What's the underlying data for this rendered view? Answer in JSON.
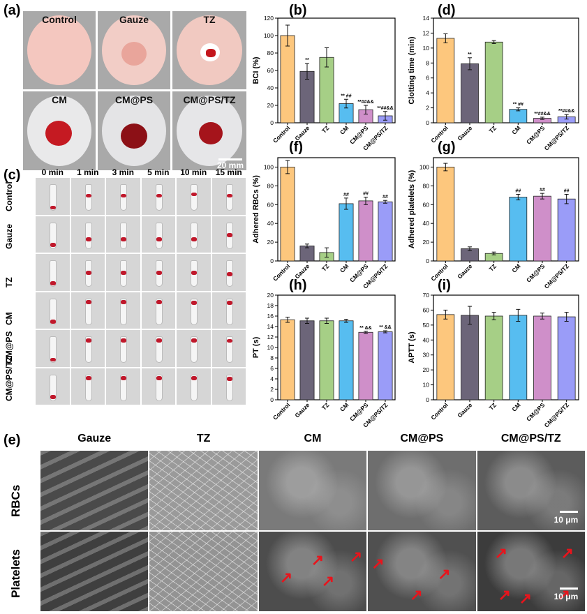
{
  "panel_labels": {
    "a": "(a)",
    "b": "(b)",
    "c": "(c)",
    "d": "(d)",
    "e": "(e)",
    "f": "(f)",
    "g": "(g)",
    "h": "(h)",
    "i": "(i)"
  },
  "colors": {
    "Control": "#fdc77d",
    "Gauze": "#6c6579",
    "TZ": "#a6cf86",
    "CM": "#57bdf0",
    "CM@PS": "#cf8fc9",
    "CM@PS/TZ": "#9a9cf8"
  },
  "panel_a": {
    "dishes": [
      {
        "label": "Control",
        "fill": "#f4c7bf"
      },
      {
        "label": "Gauze",
        "fill": "#f2cdc6"
      },
      {
        "label": "TZ",
        "fill": "#f1c9c1"
      },
      {
        "label": "CM",
        "fill": "#e9e9ea"
      },
      {
        "label": "CM@PS",
        "fill": "#e4e4e6"
      },
      {
        "label": "CM@PS/TZ",
        "fill": "#e6e6e8"
      }
    ],
    "scale_bar": "20 mm"
  },
  "panel_c": {
    "times": [
      "0 min",
      "1 min",
      "3 min",
      "5 min",
      "10 min",
      "15 min"
    ],
    "groups": [
      "Control",
      "Gauze",
      "TZ",
      "CM",
      "CM@PS",
      "CM@PS/TZ"
    ]
  },
  "panel_e": {
    "columns": [
      "Gauze",
      "TZ",
      "CM",
      "CM@PS",
      "CM@PS/TZ"
    ],
    "rows": [
      "RBCs",
      "Platelets"
    ],
    "scale_bar": "10 μm"
  },
  "chart_data": [
    {
      "panel": "b",
      "type": "bar",
      "categories": [
        "Control",
        "Gauze",
        "TZ",
        "CM",
        "CM@PS",
        "CM@PS/TZ"
      ],
      "values": [
        100,
        59,
        75,
        22,
        15,
        8
      ],
      "errors": [
        12,
        9,
        11,
        5,
        5,
        5
      ],
      "annotations": [
        "",
        "**",
        "",
        "** ##",
        "**##&&",
        "**##&&"
      ],
      "ylabel": "BCI (%)",
      "ylim": [
        0,
        120
      ],
      "yticks": [
        0,
        20,
        40,
        60,
        80,
        100,
        120
      ]
    },
    {
      "panel": "d",
      "type": "bar",
      "categories": [
        "Control",
        "Gauze",
        "TZ",
        "CM",
        "CM@PS",
        "CM@PS/TZ"
      ],
      "values": [
        11.3,
        7.9,
        10.8,
        1.8,
        0.6,
        0.8
      ],
      "errors": [
        0.6,
        0.8,
        0.2,
        0.2,
        0.15,
        0.3
      ],
      "annotations": [
        "",
        "**",
        "",
        "** ##",
        "**##&&",
        "**##&&"
      ],
      "ylabel": "Clotting time (min)",
      "ylim": [
        0,
        14
      ],
      "yticks": [
        0,
        2,
        4,
        6,
        8,
        10,
        12,
        14
      ]
    },
    {
      "panel": "f",
      "type": "bar",
      "categories": [
        "Control",
        "Gauze",
        "TZ",
        "CM",
        "CM@PS",
        "CM@PS/TZ"
      ],
      "values": [
        100,
        16,
        9,
        61,
        64,
        63
      ],
      "errors": [
        7,
        2,
        5,
        6,
        4,
        1.5
      ],
      "annotations": [
        "",
        "",
        "",
        "##",
        "##",
        "##"
      ],
      "ylabel": "Adhered RBCs (%)",
      "ylim": [
        0,
        110
      ],
      "yticks": [
        0,
        20,
        40,
        60,
        80,
        100
      ]
    },
    {
      "panel": "g",
      "type": "bar",
      "categories": [
        "Control",
        "Gauze",
        "TZ",
        "CM",
        "CM@PS",
        "CM@PS/TZ"
      ],
      "values": [
        100,
        13,
        8,
        68,
        69,
        66
      ],
      "errors": [
        4,
        2,
        1.5,
        3,
        3,
        5
      ],
      "annotations": [
        "",
        "",
        "",
        "##",
        "##",
        "##"
      ],
      "ylabel": "Adhered platelets (%)",
      "ylim": [
        0,
        110
      ],
      "yticks": [
        0,
        20,
        40,
        60,
        80,
        100
      ]
    },
    {
      "panel": "h",
      "type": "bar",
      "categories": [
        "Control",
        "Gauze",
        "TZ",
        "CM",
        "CM@PS",
        "CM@PS/TZ"
      ],
      "values": [
        15.3,
        15.1,
        15.1,
        15.1,
        12.9,
        13.0
      ],
      "errors": [
        0.5,
        0.5,
        0.5,
        0.3,
        0.2,
        0.2
      ],
      "annotations": [
        "",
        "",
        "",
        "",
        "** &&",
        "** &&"
      ],
      "ylabel": "PT (s)",
      "ylim": [
        0,
        20
      ],
      "yticks": [
        0,
        2,
        4,
        6,
        8,
        10,
        12,
        14,
        16,
        18,
        20
      ]
    },
    {
      "panel": "i",
      "type": "bar",
      "categories": [
        "Control",
        "Gauze",
        "TZ",
        "CM",
        "CM@PS",
        "CM@PS/TZ"
      ],
      "values": [
        57,
        56.5,
        56,
        56.5,
        56,
        55.5
      ],
      "errors": [
        3,
        6,
        2.5,
        4,
        2,
        3
      ],
      "annotations": [
        "",
        "",
        "",
        "",
        "",
        ""
      ],
      "ylabel": "APTT (s)",
      "ylim": [
        0,
        70
      ],
      "yticks": [
        0,
        10,
        20,
        30,
        40,
        50,
        60,
        70
      ]
    }
  ]
}
